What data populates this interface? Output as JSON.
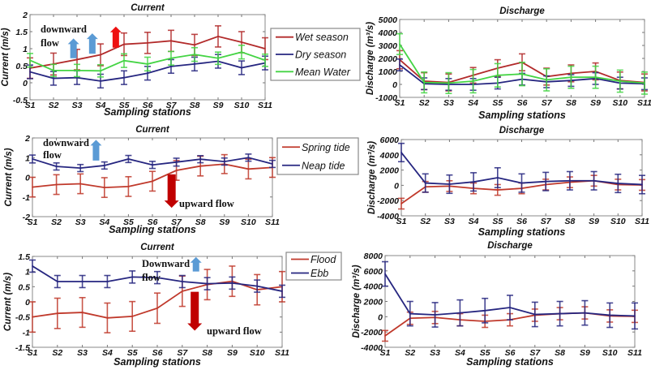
{
  "chart_data": [
    {
      "id": "current_season",
      "type": "line",
      "title": "Current",
      "xlabel": "Sampling stations",
      "ylabel": "Current (m/s)",
      "categories": [
        "S1",
        "S2",
        "S3",
        "S4",
        "S5",
        "S6",
        "S7",
        "S8",
        "S9",
        "S10",
        "S11"
      ],
      "ylim": [
        -0.5,
        2
      ],
      "yticks": [
        -0.5,
        0,
        0.5,
        1,
        1.5,
        2
      ],
      "ytick_labels": [
        "-0.5",
        "0",
        "0.5",
        "1",
        "1.5",
        "2"
      ],
      "legend_position": "right-outside",
      "series": [
        {
          "name": "Wet season",
          "color": "#b22a2a",
          "values": [
            0.43,
            0.55,
            0.68,
            0.82,
            1.13,
            1.17,
            1.23,
            1.11,
            1.36,
            1.19,
            1.0
          ],
          "err": [
            0.3,
            0.32,
            0.3,
            0.32,
            0.33,
            0.31,
            0.31,
            0.31,
            0.31,
            0.31,
            0.32
          ]
        },
        {
          "name": "Dry season",
          "color": "#262680",
          "values": [
            0.32,
            0.13,
            0.15,
            0.05,
            0.15,
            0.28,
            0.48,
            0.55,
            0.63,
            0.44,
            0.58
          ],
          "err": [
            0.2,
            0.2,
            0.2,
            0.2,
            0.2,
            0.2,
            0.2,
            0.2,
            0.2,
            0.2,
            0.2
          ]
        },
        {
          "name": "Mean Water",
          "color": "#44d444",
          "values": [
            0.66,
            0.36,
            0.36,
            0.35,
            0.65,
            0.55,
            0.72,
            0.83,
            0.72,
            0.9,
            0.66
          ],
          "err": [
            0.2,
            0.18,
            0.18,
            0.18,
            0.2,
            0.2,
            0.2,
            0.2,
            0.18,
            0.2,
            0.18
          ]
        }
      ],
      "annotations": [
        {
          "text": "downward",
          "kind": "label"
        },
        {
          "text": "flow",
          "kind": "label"
        },
        {
          "kind": "arrow-up",
          "color": "#5b9bd5",
          "at_x": 2.85,
          "y_from": 0.72,
          "y_to": 1.3
        },
        {
          "kind": "arrow-up",
          "color": "#5b9bd5",
          "at_x": 3.65,
          "y_from": 0.85,
          "y_to": 1.45
        },
        {
          "kind": "arrow-up",
          "color": "#ee1111",
          "at_x": 4.65,
          "y_from": 1.03,
          "y_to": 1.65
        }
      ]
    },
    {
      "id": "discharge_season",
      "type": "line",
      "title": "Discharge",
      "xlabel": "Sampling stations",
      "ylabel": "Discharge (m³/s)",
      "categories": [
        "S1",
        "S2",
        "S3",
        "S4",
        "S5",
        "S6",
        "S7",
        "S8",
        "S9",
        "S10",
        "S11"
      ],
      "ylim": [
        -1000,
        5000
      ],
      "yticks": [
        -1000,
        0,
        1000,
        2000,
        3000,
        4000,
        5000
      ],
      "ytick_labels": [
        "-1000",
        "0",
        "1000",
        "2000",
        "3000",
        "4000",
        "5000"
      ],
      "series": [
        {
          "name": "Wet season",
          "color": "#b22a2a",
          "values": [
            1900,
            250,
            150,
            700,
            1250,
            1700,
            600,
            850,
            1000,
            300,
            150
          ],
          "err": [
            700,
            650,
            650,
            600,
            650,
            650,
            650,
            650,
            650,
            650,
            650
          ]
        },
        {
          "name": "Dry season",
          "color": "#262680",
          "values": [
            1500,
            50,
            0,
            0,
            100,
            400,
            200,
            300,
            450,
            100,
            50
          ],
          "err": [
            450,
            450,
            450,
            450,
            450,
            450,
            450,
            450,
            450,
            450,
            450
          ]
        },
        {
          "name": "Mean Water",
          "color": "#44d444",
          "values": [
            3100,
            150,
            100,
            250,
            700,
            800,
            350,
            550,
            550,
            250,
            100
          ],
          "err": [
            800,
            800,
            800,
            900,
            900,
            900,
            850,
            850,
            850,
            850,
            850
          ]
        }
      ]
    },
    {
      "id": "current_tide",
      "type": "line",
      "title": "Current",
      "xlabel": "Sampling stations",
      "ylabel": "Current (m/s)",
      "categories": [
        "S1",
        "S2",
        "S3",
        "S4",
        "S5",
        "S6",
        "S7",
        "S8",
        "S9",
        "S10",
        "S11"
      ],
      "ylim": [
        -2,
        2
      ],
      "yticks": [
        -2,
        -1,
        0,
        1,
        2
      ],
      "ytick_labels": [
        "-2",
        "-1",
        "0",
        "1",
        "2"
      ],
      "legend_position": "right-outside",
      "series": [
        {
          "name": "Spring tide",
          "color": "#c0392b",
          "values": [
            -0.5,
            -0.37,
            -0.33,
            -0.52,
            -0.47,
            -0.2,
            0.35,
            0.57,
            0.67,
            0.42,
            0.5
          ],
          "err": [
            0.5,
            0.5,
            0.5,
            0.5,
            0.5,
            0.5,
            0.5,
            0.5,
            0.48,
            0.5,
            0.5
          ]
        },
        {
          "name": "Neap tide",
          "color": "#262680",
          "values": [
            0.93,
            0.55,
            0.47,
            0.6,
            0.93,
            0.63,
            0.77,
            0.92,
            0.8,
            1.0,
            0.68
          ],
          "err": [
            0.2,
            0.18,
            0.18,
            0.18,
            0.18,
            0.18,
            0.2,
            0.18,
            0.18,
            0.18,
            0.18
          ]
        }
      ],
      "annotations": [
        {
          "text": "downward",
          "kind": "label"
        },
        {
          "text": "flow",
          "kind": "label"
        },
        {
          "text": "upward flow",
          "kind": "label"
        },
        {
          "kind": "arrow-up",
          "color": "#5b9bd5",
          "at_x": 3.65,
          "y_from": 0.85,
          "y_to": 1.9
        },
        {
          "kind": "arrow-down",
          "color": "#c00000",
          "at_x": 6.8,
          "y_from": 0.15,
          "y_to": -1.55
        }
      ]
    },
    {
      "id": "discharge_tide",
      "type": "line",
      "title": "Discharge",
      "xlabel": "Sampling stations",
      "ylabel": "Discharge (m³/s)",
      "categories": [
        "S1",
        "S2",
        "S3",
        "S4",
        "S5",
        "S6",
        "S7",
        "S8",
        "S9",
        "S10",
        "S11"
      ],
      "ylim": [
        -4000,
        6000
      ],
      "yticks": [
        -4000,
        -2000,
        0,
        2000,
        4000,
        6000
      ],
      "ytick_labels": [
        "-4000",
        "-2000",
        "0",
        "2000",
        "4000",
        "6000"
      ],
      "series": [
        {
          "name": "Spring tide",
          "color": "#c0392b",
          "values": [
            -2400,
            -200,
            -100,
            -400,
            -600,
            -400,
            100,
            400,
            600,
            100,
            50
          ],
          "err": [
            700,
            700,
            700,
            700,
            700,
            700,
            700,
            700,
            700,
            700,
            700
          ]
        },
        {
          "name": "Neap tide",
          "color": "#262680",
          "values": [
            4300,
            300,
            150,
            450,
            1000,
            300,
            500,
            600,
            600,
            250,
            100
          ],
          "err": [
            1200,
            1200,
            1200,
            1200,
            1300,
            1200,
            1200,
            1200,
            1200,
            1200,
            1200
          ]
        }
      ]
    },
    {
      "id": "current_floodebb",
      "type": "line",
      "title": "Current",
      "xlabel": "Sampling stations",
      "ylabel": "Current (m/s)",
      "categories": [
        "S1",
        "S2",
        "S3",
        "S4",
        "S5",
        "S6",
        "S7",
        "S8",
        "S9",
        "S10",
        "S11"
      ],
      "ylim": [
        -1.5,
        1.5
      ],
      "yticks": [
        -1.5,
        -1,
        -0.5,
        0,
        0.5,
        1,
        1.5
      ],
      "ytick_labels": [
        "-1.5",
        "-1",
        "-0.5",
        "0",
        "0.5",
        "1",
        "1.5"
      ],
      "legend_position": "right-outside",
      "series": [
        {
          "name": "Flood",
          "color": "#c0392b",
          "values": [
            -0.5,
            -0.38,
            -0.35,
            -0.53,
            -0.48,
            -0.21,
            0.35,
            0.57,
            0.68,
            0.4,
            0.5
          ],
          "err": [
            0.5,
            0.5,
            0.49,
            0.49,
            0.49,
            0.5,
            0.5,
            0.5,
            0.5,
            0.5,
            0.5
          ]
        },
        {
          "name": "Ebb",
          "color": "#262680",
          "values": [
            1.18,
            0.67,
            0.67,
            0.67,
            0.82,
            0.8,
            0.67,
            0.6,
            0.62,
            0.52,
            0.35
          ],
          "err": [
            0.2,
            0.2,
            0.2,
            0.2,
            0.2,
            0.2,
            0.2,
            0.2,
            0.2,
            0.2,
            0.2
          ]
        }
      ],
      "annotations": [
        {
          "text": "Downward",
          "kind": "label"
        },
        {
          "text": "flow",
          "kind": "label"
        },
        {
          "text": "upward flow",
          "kind": "label"
        },
        {
          "kind": "arrow-up",
          "color": "#5b9bd5",
          "at_x": 7.55,
          "y_from": 1.0,
          "y_to": 1.48
        },
        {
          "kind": "arrow-down",
          "color": "#c00000",
          "at_x": 7.5,
          "y_from": 0.33,
          "y_to": -0.95
        }
      ]
    },
    {
      "id": "discharge_floodebb",
      "type": "line",
      "title": "Discharge",
      "xlabel": "Sampling stations",
      "ylabel": "Discharge (m³/s)",
      "categories": [
        "S1",
        "S2",
        "S3",
        "S4",
        "S5",
        "S6",
        "S7",
        "S8",
        "S9",
        "S10",
        "S11"
      ],
      "ylim": [
        -4000,
        8000
      ],
      "yticks": [
        -4000,
        -2000,
        0,
        2000,
        4000,
        6000,
        8000
      ],
      "ytick_labels": [
        "-4000",
        "-2000",
        "0",
        "2000",
        "4000",
        "6000",
        "8000"
      ],
      "series": [
        {
          "name": "Flood",
          "color": "#c0392b",
          "values": [
            -2500,
            -200,
            -100,
            -400,
            -600,
            -400,
            200,
            400,
            500,
            100,
            50
          ],
          "err": [
            700,
            800,
            800,
            800,
            800,
            800,
            800,
            800,
            800,
            800,
            800
          ]
        },
        {
          "name": "Ebb",
          "color": "#262680",
          "values": [
            5600,
            400,
            250,
            500,
            800,
            1200,
            300,
            400,
            500,
            200,
            100
          ],
          "err": [
            1600,
            1600,
            1600,
            1700,
            1600,
            1600,
            1600,
            1600,
            1600,
            1600,
            1700
          ]
        }
      ]
    }
  ],
  "labels": {
    "downward": "downward",
    "flow": "flow",
    "Downward": "Downward",
    "upward_flow": "upward flow"
  }
}
